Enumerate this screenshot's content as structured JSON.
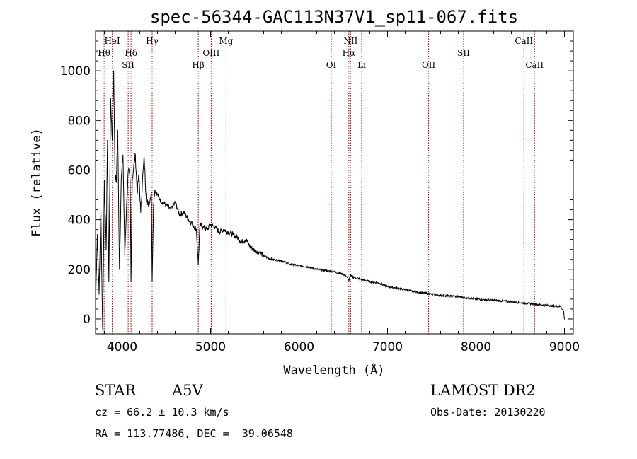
{
  "chart_data": {
    "type": "line",
    "title": "spec-56344-GAC113N37V1_sp11-067.fits",
    "xlabel": "Wavelength (Å)",
    "ylabel": "Flux (relative)",
    "xlim": [
      3700,
      9100
    ],
    "ylim": [
      -60,
      1160
    ],
    "xticks": [
      4000,
      5000,
      6000,
      7000,
      8000,
      9000
    ],
    "yticks": [
      0,
      200,
      400,
      600,
      800,
      1000
    ],
    "grid": false,
    "series": [
      {
        "x": [
          3700,
          3720,
          3740,
          3760,
          3780,
          3800,
          3820,
          3835,
          3850,
          3870,
          3889,
          3905,
          3920,
          3935,
          3950,
          3970,
          3990,
          4010,
          4030,
          4050,
          4070,
          4090,
          4101,
          4115,
          4130,
          4150,
          4170,
          4190,
          4210,
          4230,
          4250,
          4270,
          4290,
          4310,
          4330,
          4340,
          4355,
          4370,
          4400,
          4430,
          4460,
          4500,
          4550,
          4600,
          4650,
          4700,
          4750,
          4800,
          4840,
          4861,
          4880,
          4920,
          4960,
          5000,
          5050,
          5100,
          5150,
          5200,
          5250,
          5300,
          5350,
          5400,
          5450,
          5500,
          5550,
          5600,
          5650,
          5700,
          5800,
          5900,
          6000,
          6100,
          6200,
          6300,
          6400,
          6500,
          6540,
          6563,
          6580,
          6600,
          6700,
          6800,
          6900,
          7000,
          7100,
          7200,
          7300,
          7400,
          7500,
          7600,
          7700,
          7800,
          7900,
          8000,
          8100,
          8200,
          8300,
          8400,
          8500,
          8600,
          8700,
          8800,
          8900,
          8960,
          8990,
          9000
        ],
        "y": [
          60,
          340,
          100,
          440,
          -40,
          560,
          280,
          720,
          150,
          890,
          720,
          1000,
          580,
          550,
          760,
          200,
          560,
          660,
          260,
          450,
          600,
          560,
          150,
          560,
          610,
          660,
          510,
          580,
          430,
          560,
          650,
          500,
          460,
          470,
          510,
          150,
          460,
          520,
          500,
          480,
          470,
          460,
          440,
          470,
          420,
          430,
          400,
          380,
          360,
          220,
          380,
          370,
          360,
          380,
          370,
          350,
          360,
          350,
          340,
          330,
          310,
          320,
          290,
          275,
          270,
          255,
          245,
          240,
          235,
          220,
          215,
          210,
          200,
          195,
          190,
          180,
          170,
          155,
          175,
          170,
          160,
          150,
          145,
          130,
          125,
          118,
          110,
          105,
          100,
          95,
          93,
          90,
          85,
          80,
          78,
          75,
          72,
          70,
          65,
          62,
          58,
          55,
          52,
          50,
          30,
          0
        ]
      }
    ],
    "spectral_lines": [
      {
        "name": "Hθ",
        "wavelength": 3797,
        "row": 2
      },
      {
        "name": "HeI",
        "wavelength": 3889,
        "row": 1
      },
      {
        "name": "Hδ",
        "wavelength": 4101,
        "row": 2
      },
      {
        "name": "SII",
        "wavelength": 4069,
        "row": 3
      },
      {
        "name": "Hγ",
        "wavelength": 4340,
        "row": 1
      },
      {
        "name": "Hβ",
        "wavelength": 4861,
        "row": 3
      },
      {
        "name": "OIII",
        "wavelength": 5007,
        "row": 2
      },
      {
        "name": "Mg",
        "wavelength": 5175,
        "row": 1
      },
      {
        "name": "OI",
        "wavelength": 6364,
        "row": 3
      },
      {
        "name": "NII",
        "wavelength": 6583,
        "row": 1
      },
      {
        "name": "Hα",
        "wavelength": 6563,
        "row": 2
      },
      {
        "name": "Li",
        "wavelength": 6708,
        "row": 3
      },
      {
        "name": "OII",
        "wavelength": 7465,
        "row": 3
      },
      {
        "name": "SII",
        "wavelength": 7860,
        "row": 2
      },
      {
        "name": "CaII",
        "wavelength": 8542,
        "row": 1
      },
      {
        "name": "CaII",
        "wavelength": 8662,
        "row": 3
      }
    ],
    "line_color": "#8b0000"
  },
  "info": {
    "object_class": "STAR",
    "subclass": "A5V",
    "survey": "LAMOST DR2",
    "cz": "cz = 66.2 ± 10.3 km/s",
    "obs_date": "Obs-Date: 20130220",
    "coords": "RA = 113.77486, DEC =  39.06548"
  }
}
